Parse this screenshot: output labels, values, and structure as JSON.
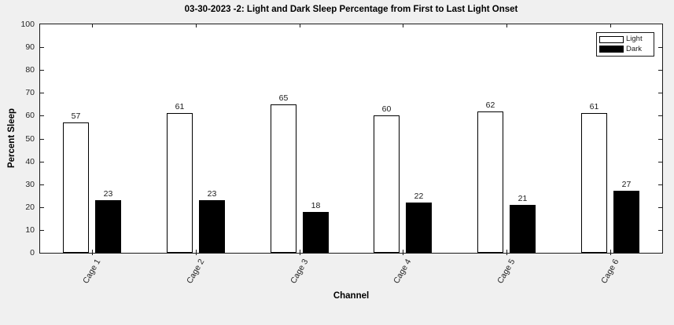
{
  "figure": {
    "background_color": "#f0f0f0",
    "plot_background_color": "#ffffff",
    "axis_color": "#1a1a1a",
    "tick_label_color": "#262626"
  },
  "chart_data": {
    "type": "bar",
    "title": "03-30-2023 -2: Light and Dark Sleep Percentage from First to Last Light Onset",
    "xlabel": "Channel",
    "ylabel": "Percent Sleep",
    "categories": [
      "Cage 1",
      "Cage 2",
      "Cage 3",
      "Cage 4",
      "Cage 5",
      "Cage 6"
    ],
    "series": [
      {
        "name": "Light",
        "color": "#ffffff",
        "values": [
          57,
          61,
          65,
          60,
          62,
          61
        ]
      },
      {
        "name": "Dark",
        "color": "#000000",
        "values": [
          23,
          23,
          18,
          22,
          21,
          27
        ]
      }
    ],
    "ylim": [
      0,
      100
    ],
    "yticks": [
      0,
      10,
      20,
      30,
      40,
      50,
      60,
      70,
      80,
      90,
      100
    ],
    "bar_labels": true,
    "grid": false,
    "legend_position": "top-right"
  }
}
